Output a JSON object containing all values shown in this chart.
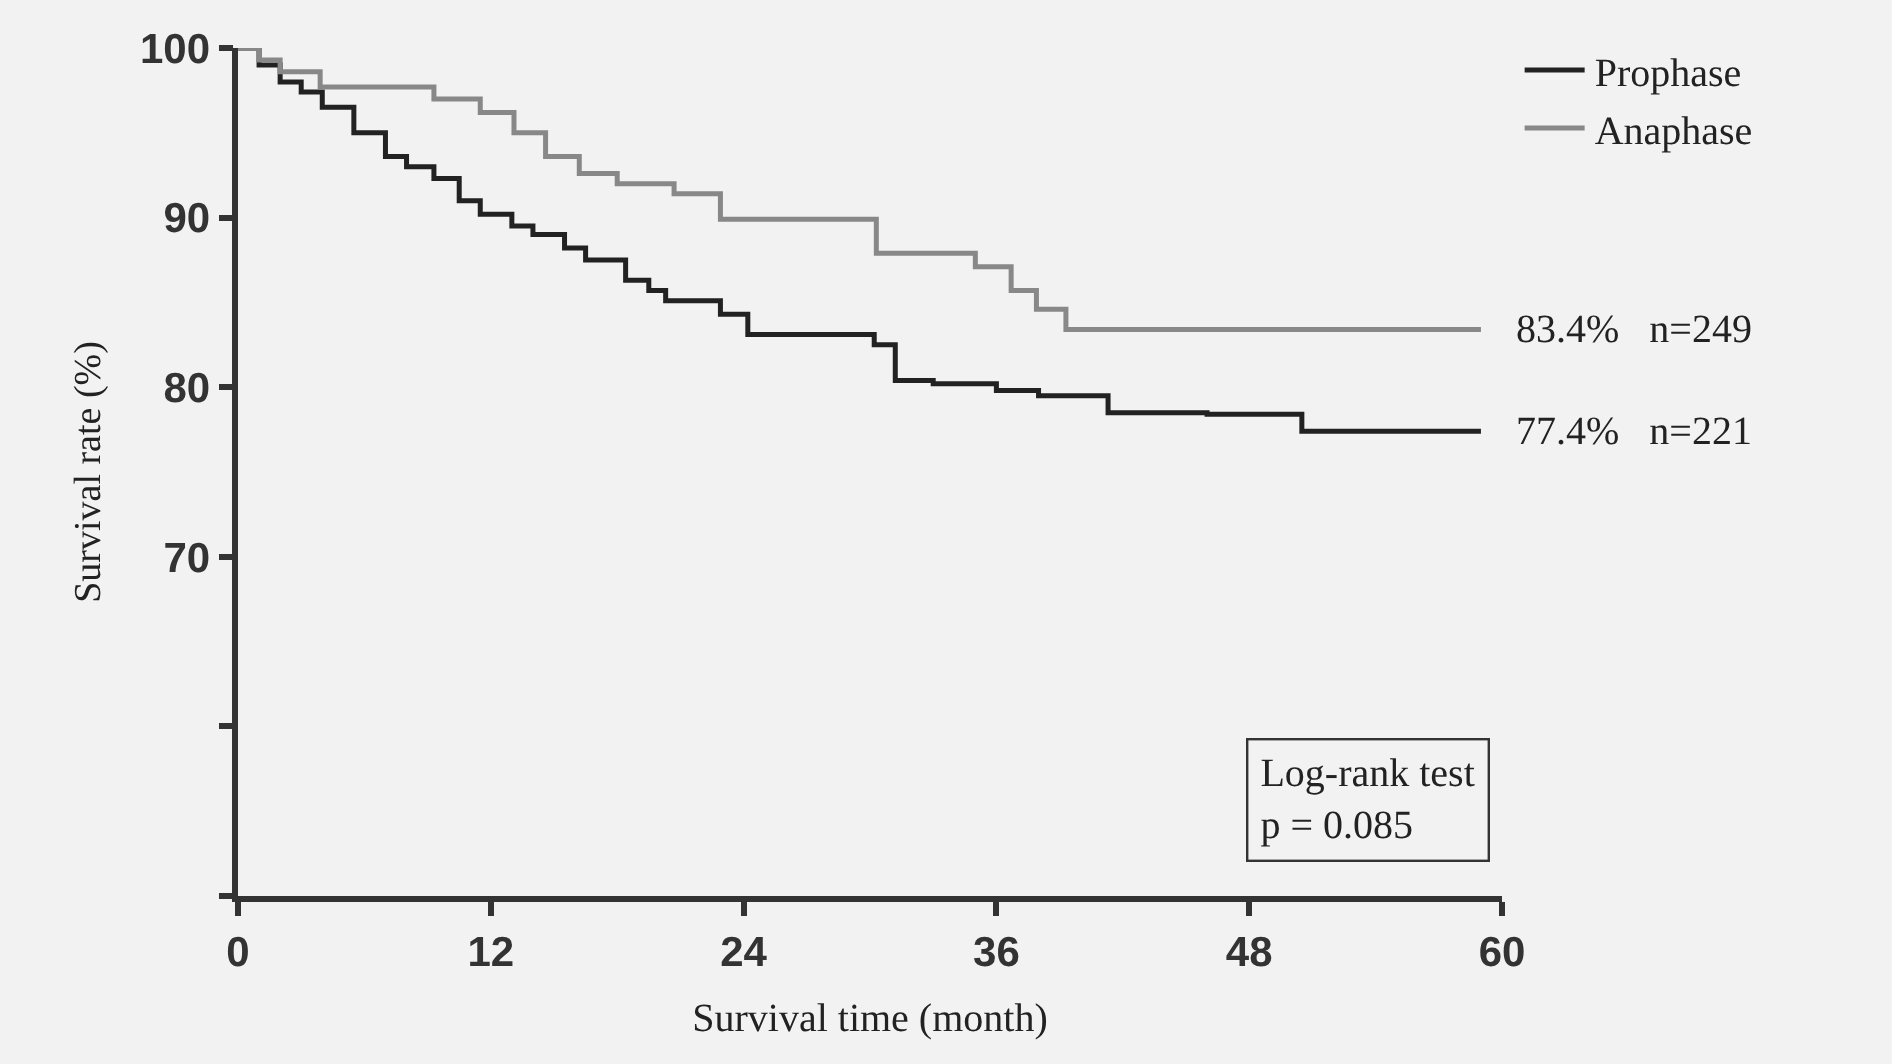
{
  "chart_data": {
    "type": "step",
    "xlabel": "Survival time (month)",
    "ylabel": "Survival rate (%)",
    "xlim": [
      0,
      60
    ],
    "xticks": [
      0,
      12,
      24,
      36,
      48,
      60
    ],
    "ylim": [
      50,
      100
    ],
    "yticks": [
      {
        "value": 50,
        "label": null
      },
      {
        "value": 60,
        "label": null
      },
      70,
      80,
      90,
      100
    ],
    "grid": false,
    "legend": "top right",
    "series": [
      {
        "name": "Prophase",
        "color": "#222222",
        "x": [
          0,
          1,
          2,
          3,
          4,
          5.5,
          7,
          8,
          9.3,
          10.5,
          11.5,
          13,
          14,
          15.5,
          16.5,
          18.4,
          19.5,
          20.3,
          22.9,
          24.2,
          30.2,
          31.2,
          33,
          36,
          38,
          41.3,
          46,
          50.5,
          59
        ],
        "values": [
          100,
          99,
          98,
          97.4,
          96.5,
          95,
          93.6,
          93,
          92.3,
          91,
          90.2,
          89.5,
          89,
          88.2,
          87.5,
          86.3,
          85.7,
          85.1,
          84.3,
          83.1,
          82.5,
          80.4,
          80.2,
          79.8,
          79.5,
          78.5,
          78.4,
          77.4,
          77.4
        ]
      },
      {
        "name": "Anaphase",
        "color": "#888888",
        "x": [
          0,
          1,
          2,
          3.9,
          9.3,
          11.5,
          13.1,
          14.6,
          16.2,
          18,
          20.7,
          22.9,
          30.3,
          35,
          36.7,
          37.9,
          39.3,
          59
        ],
        "values": [
          100,
          99.3,
          98.6,
          97.7,
          97,
          96.2,
          95,
          93.6,
          92.6,
          92,
          91.4,
          89.9,
          87.9,
          87.1,
          85.7,
          84.6,
          83.4,
          83.4
        ]
      }
    ],
    "annotations": [
      {
        "text": "83.4%   n=249",
        "x": 59,
        "y": 83.4
      },
      {
        "text": "77.4%   n=221",
        "x": 59,
        "y": 77.4
      },
      "Log-rank test\np = 0.085"
    ]
  }
}
